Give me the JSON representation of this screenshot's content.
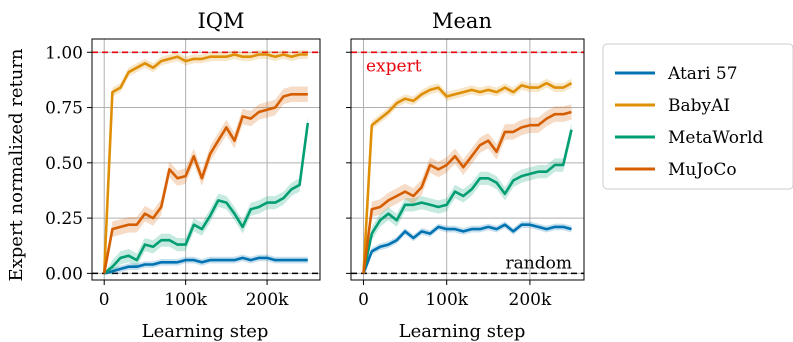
{
  "figure": {
    "ylabel": "Expert normalized return",
    "xlabel": "Learning step",
    "ref_labels": {
      "expert": "expert",
      "random": "random"
    }
  },
  "colors": {
    "Atari 57": "#0173b2",
    "BabyAI": "#de8f05",
    "MetaWorld": "#029e73",
    "MuJoCo": "#d55e00",
    "expert_line": "#e8000b",
    "random_line": "#000000",
    "grid": "#b0b0b0"
  },
  "chart_data": [
    {
      "type": "line",
      "title": "IQM",
      "xlabel": "Learning step",
      "ylabel": "Expert normalized return",
      "xlim": [
        -15000,
        265000
      ],
      "ylim": [
        -0.03,
        1.06
      ],
      "xticks": [
        0,
        100000,
        200000
      ],
      "xtick_labels": [
        "0",
        "100k",
        "200k"
      ],
      "yticks": [
        0.0,
        0.25,
        0.5,
        0.75,
        1.0
      ],
      "ytick_labels": [
        "0.00",
        "0.25",
        "0.50",
        "0.75",
        "1.00"
      ],
      "grid": true,
      "x": [
        0,
        10000,
        20000,
        30000,
        40000,
        50000,
        60000,
        70000,
        80000,
        90000,
        100000,
        110000,
        120000,
        130000,
        140000,
        150000,
        160000,
        170000,
        180000,
        190000,
        200000,
        210000,
        220000,
        230000,
        240000,
        250000
      ],
      "series": [
        {
          "name": "Atari 57",
          "values": [
            0.0,
            0.01,
            0.02,
            0.03,
            0.03,
            0.04,
            0.04,
            0.05,
            0.05,
            0.05,
            0.06,
            0.06,
            0.05,
            0.06,
            0.06,
            0.06,
            0.06,
            0.07,
            0.06,
            0.07,
            0.07,
            0.06,
            0.06,
            0.06,
            0.06,
            0.06
          ]
        },
        {
          "name": "BabyAI",
          "values": [
            0.0,
            0.82,
            0.84,
            0.91,
            0.93,
            0.95,
            0.93,
            0.96,
            0.97,
            0.98,
            0.96,
            0.97,
            0.97,
            0.98,
            0.98,
            0.98,
            0.99,
            0.98,
            0.98,
            0.99,
            0.99,
            0.98,
            0.99,
            0.98,
            0.99,
            0.99
          ]
        },
        {
          "name": "MetaWorld",
          "values": [
            0.0,
            0.03,
            0.07,
            0.08,
            0.06,
            0.13,
            0.12,
            0.15,
            0.15,
            0.13,
            0.13,
            0.22,
            0.2,
            0.26,
            0.33,
            0.32,
            0.27,
            0.21,
            0.29,
            0.3,
            0.32,
            0.32,
            0.34,
            0.38,
            0.4,
            0.68
          ]
        },
        {
          "name": "MuJoCo",
          "values": [
            0.0,
            0.2,
            0.21,
            0.22,
            0.22,
            0.27,
            0.25,
            0.3,
            0.47,
            0.43,
            0.44,
            0.53,
            0.43,
            0.54,
            0.6,
            0.66,
            0.6,
            0.71,
            0.7,
            0.73,
            0.74,
            0.75,
            0.8,
            0.81,
            0.81,
            0.81
          ]
        }
      ]
    },
    {
      "type": "line",
      "title": "Mean",
      "xlabel": "Learning step",
      "xlim": [
        -15000,
        265000
      ],
      "ylim": [
        -0.03,
        1.06
      ],
      "xticks": [
        0,
        100000,
        200000
      ],
      "xtick_labels": [
        "0",
        "100k",
        "200k"
      ],
      "grid": true,
      "x": [
        0,
        10000,
        20000,
        30000,
        40000,
        50000,
        60000,
        70000,
        80000,
        90000,
        100000,
        110000,
        120000,
        130000,
        140000,
        150000,
        160000,
        170000,
        180000,
        190000,
        200000,
        210000,
        220000,
        230000,
        240000,
        250000
      ],
      "series": [
        {
          "name": "Atari 57",
          "values": [
            0.0,
            0.1,
            0.12,
            0.13,
            0.15,
            0.19,
            0.16,
            0.19,
            0.18,
            0.21,
            0.2,
            0.2,
            0.19,
            0.2,
            0.2,
            0.21,
            0.2,
            0.22,
            0.19,
            0.22,
            0.22,
            0.21,
            0.2,
            0.21,
            0.21,
            0.2
          ]
        },
        {
          "name": "BabyAI",
          "values": [
            0.0,
            0.67,
            0.7,
            0.73,
            0.77,
            0.79,
            0.78,
            0.81,
            0.83,
            0.84,
            0.8,
            0.81,
            0.82,
            0.83,
            0.82,
            0.83,
            0.82,
            0.84,
            0.82,
            0.85,
            0.84,
            0.84,
            0.86,
            0.84,
            0.84,
            0.86
          ]
        },
        {
          "name": "MetaWorld",
          "values": [
            0.0,
            0.18,
            0.24,
            0.27,
            0.24,
            0.31,
            0.31,
            0.32,
            0.31,
            0.3,
            0.31,
            0.37,
            0.35,
            0.38,
            0.43,
            0.43,
            0.41,
            0.36,
            0.42,
            0.44,
            0.45,
            0.46,
            0.46,
            0.49,
            0.49,
            0.65
          ]
        },
        {
          "name": "MuJoCo",
          "values": [
            0.0,
            0.29,
            0.3,
            0.33,
            0.35,
            0.37,
            0.35,
            0.39,
            0.49,
            0.47,
            0.49,
            0.53,
            0.48,
            0.53,
            0.58,
            0.6,
            0.55,
            0.64,
            0.64,
            0.66,
            0.67,
            0.67,
            0.7,
            0.72,
            0.72,
            0.73
          ]
        }
      ]
    }
  ],
  "legend": {
    "placement": "right",
    "entries": [
      "Atari 57",
      "BabyAI",
      "MetaWorld",
      "MuJoCo"
    ]
  }
}
